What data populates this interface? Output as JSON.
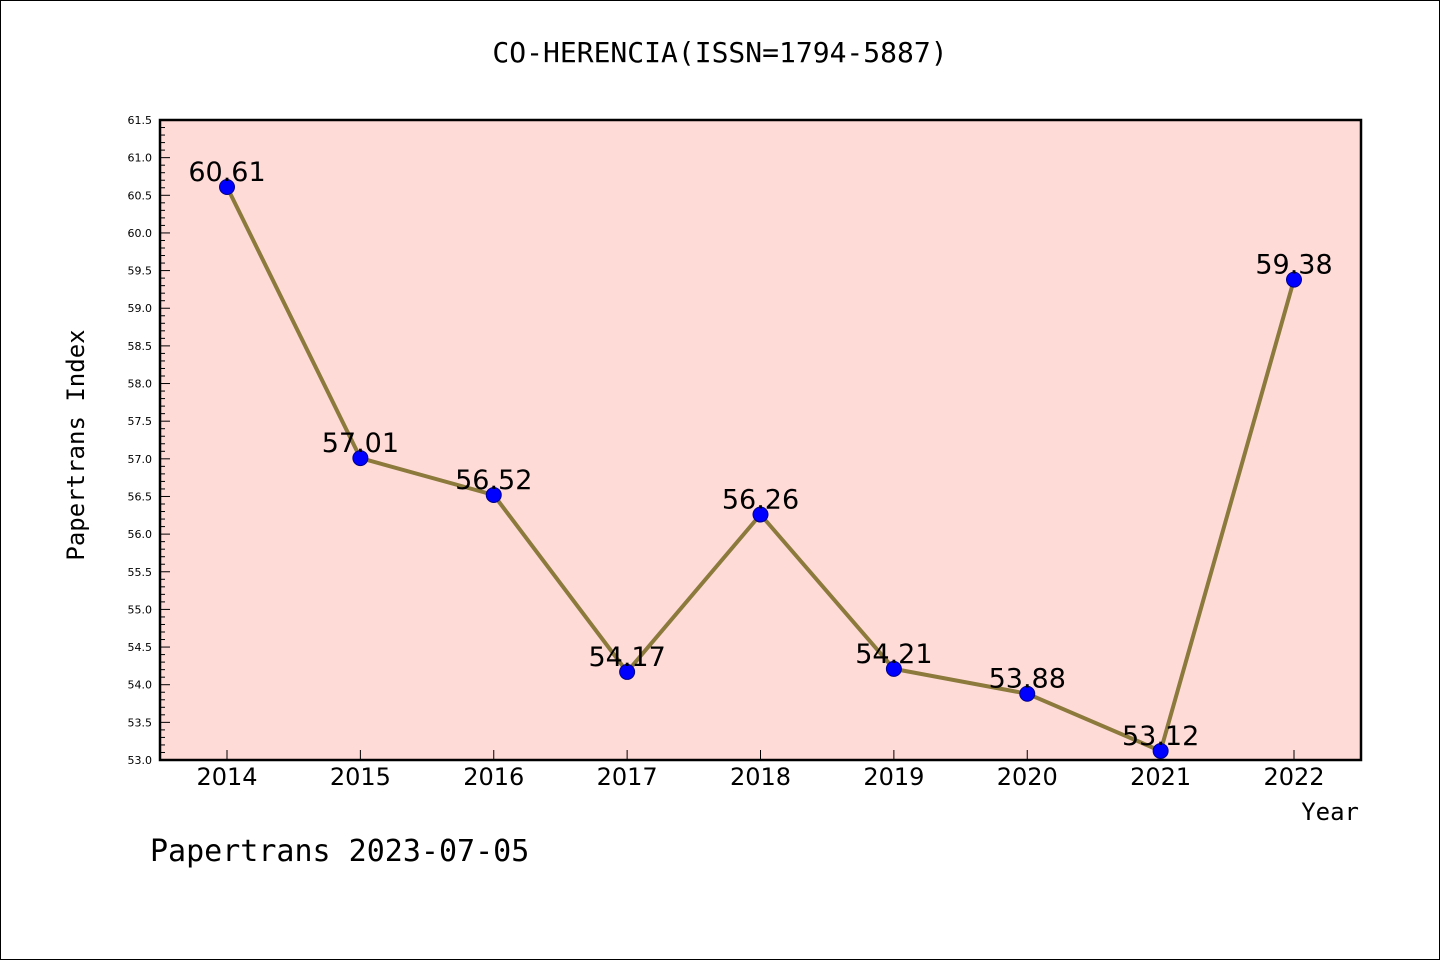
{
  "chart_data": {
    "type": "line",
    "title": "CO-HERENCIA(ISSN=1794-5887)",
    "xlabel": "Year",
    "ylabel": "Papertrans Index",
    "categories": [
      "2014",
      "2015",
      "2016",
      "2017",
      "2018",
      "2019",
      "2020",
      "2021",
      "2022"
    ],
    "series": [
      {
        "values": [
          60.61,
          57.01,
          56.52,
          54.17,
          56.26,
          54.21,
          53.88,
          53.12,
          59.38
        ]
      }
    ],
    "data_labels": [
      "60.61",
      "57.01",
      "56.52",
      "54.17",
      "56.26",
      "54.21",
      "53.88",
      "53.12",
      "59.38"
    ],
    "ylim": [
      53.0,
      61.5
    ],
    "y_major_step": 0.5,
    "y_ticks": [
      "53.0",
      "53.5",
      "54.0",
      "54.5",
      "55.0",
      "55.5",
      "56.0",
      "56.5",
      "57.0",
      "57.5",
      "58.0",
      "58.5",
      "59.0",
      "59.5",
      "60.0",
      "60.5",
      "61.0",
      "61.5"
    ],
    "grid": false,
    "legend": "none",
    "colors": {
      "plot_background": "#FFDBD8",
      "line": "#8C7A3C",
      "marker": "#0000FF"
    }
  },
  "footer": "Papertrans 2023-07-05"
}
